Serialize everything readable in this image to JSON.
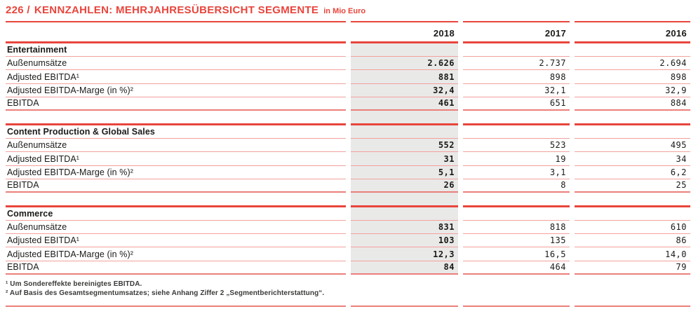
{
  "header": {
    "number": "226 /",
    "title": "KENNZAHLEN: MEHRJAHRESÜBERSICHT SEGMENTE",
    "unit": "in Mio Euro"
  },
  "table": {
    "year_columns": [
      "2018",
      "2017",
      "2016"
    ],
    "highlighted_year": "2018",
    "sections": [
      {
        "name": "Entertainment",
        "rows": [
          {
            "label": "Außenumsätze",
            "values": [
              "2.626",
              "2.737",
              "2.694"
            ]
          },
          {
            "label": "Adjusted EBITDA¹",
            "values": [
              "881",
              "898",
              "898"
            ]
          },
          {
            "label": "Adjusted EBITDA-Marge (in %)²",
            "values": [
              "32,4",
              "32,1",
              "32,9"
            ]
          },
          {
            "label": "EBITDA",
            "values": [
              "461",
              "651",
              "884"
            ]
          }
        ]
      },
      {
        "name": "Content Production & Global Sales",
        "rows": [
          {
            "label": "Außenumsätze",
            "values": [
              "552",
              "523",
              "495"
            ]
          },
          {
            "label": "Adjusted EBITDA¹",
            "values": [
              "31",
              "19",
              "34"
            ]
          },
          {
            "label": "Adjusted EBITDA-Marge (in %)²",
            "values": [
              "5,1",
              "3,1",
              "6,2"
            ]
          },
          {
            "label": "EBITDA",
            "values": [
              "26",
              "8",
              "25"
            ]
          }
        ]
      },
      {
        "name": "Commerce",
        "rows": [
          {
            "label": "Außenumsätze",
            "values": [
              "831",
              "818",
              "610"
            ]
          },
          {
            "label": "Adjusted EBITDA¹",
            "values": [
              "103",
              "135",
              "86"
            ]
          },
          {
            "label": "Adjusted EBITDA-Marge (in %)²",
            "values": [
              "12,3",
              "16,5",
              "14,0"
            ]
          },
          {
            "label": "EBITDA",
            "values": [
              "84",
              "464",
              "79"
            ]
          }
        ]
      }
    ]
  },
  "footnotes": [
    "¹ Um Sondereffekte bereinigtes EBITDA.",
    "² Auf Basis des Gesamtsegmentumsatzes; siehe Anhang Ziffer 2 „Segmentberichterstattung“."
  ],
  "colors": {
    "accent_red": "#e8453c",
    "rule_light": "#f2a19d",
    "rule_medium": "#eb7f7a",
    "highlight_gray": "#e9e9e8",
    "text": "#1a1a18"
  }
}
